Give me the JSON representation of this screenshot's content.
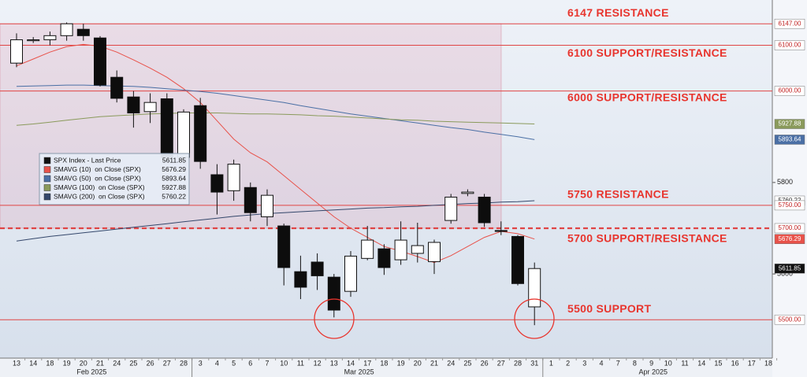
{
  "chart_data": {
    "type": "candlestick",
    "candle_name": "SPX Index - Last Price",
    "categories": [
      "13",
      "14",
      "18",
      "19",
      "20",
      "21",
      "24",
      "25",
      "26",
      "27",
      "28",
      "3",
      "4",
      "5",
      "6",
      "7",
      "10",
      "11",
      "12",
      "13",
      "14",
      "17",
      "18",
      "19",
      "20",
      "21",
      "24",
      "25",
      "26",
      "27",
      "28",
      "31",
      "1",
      "2",
      "3",
      "4",
      "7",
      "8",
      "9",
      "10",
      "11",
      "14",
      "15",
      "16",
      "17",
      "18"
    ],
    "month_labels": [
      "Feb 2025",
      "Mar 2025",
      "Apr 2025"
    ],
    "open": [
      6061,
      6110,
      6112,
      6121,
      6135,
      6116,
      6030,
      5987,
      5955,
      5983,
      5855,
      5968,
      5817,
      5782,
      5789,
      5725,
      5705,
      5605,
      5626,
      5593,
      5562,
      5634,
      5655,
      5631,
      5645,
      5627,
      5717,
      5776,
      5768,
      5695,
      5682,
      5528,
      null,
      null,
      null,
      null,
      null,
      null,
      null,
      null,
      null,
      null,
      null,
      null,
      null,
      null
    ],
    "high": [
      6126,
      6118,
      6130,
      6150,
      6147,
      6120,
      6045,
      6000,
      5995,
      5995,
      5960,
      5985,
      5840,
      5850,
      5800,
      5785,
      5710,
      5640,
      5645,
      5600,
      5650,
      5705,
      5665,
      5715,
      5712,
      5675,
      5775,
      5785,
      5775,
      5715,
      5685,
      5625,
      null,
      null,
      null,
      null,
      null,
      null,
      null,
      null,
      null,
      null,
      null,
      null,
      null,
      null
    ],
    "low": [
      6052,
      6105,
      6100,
      6110,
      6110,
      6010,
      5975,
      5920,
      5930,
      5845,
      5840,
      5830,
      5730,
      5760,
      5715,
      5705,
      5575,
      5545,
      5565,
      5505,
      5550,
      5630,
      5598,
      5620,
      5625,
      5600,
      5710,
      5770,
      5703,
      5685,
      5575,
      5488,
      null,
      null,
      null,
      null,
      null,
      null,
      null,
      null,
      null,
      null,
      null,
      null,
      null,
      null
    ],
    "close": [
      6112,
      6112,
      6121,
      6147,
      6121,
      6013,
      5984,
      5952,
      5975,
      5855,
      5954,
      5846,
      5779,
      5840,
      5734,
      5772,
      5614,
      5571,
      5596,
      5521,
      5639,
      5674,
      5614,
      5674,
      5662,
      5669,
      5768,
      5779,
      5712,
      5693,
      5579,
      5611.85,
      null,
      null,
      null,
      null,
      null,
      null,
      null,
      null,
      null,
      null,
      null,
      null,
      null,
      null
    ],
    "series": [
      {
        "name": "SMAVG (10)  on Close (SPX)",
        "color": "#e8524a",
        "values": [
          6055,
          6070,
          6085,
          6097,
          6102,
          6098,
          6085,
          6068,
          6050,
          6030,
          6005,
          5975,
          5935,
          5895,
          5865,
          5845,
          5815,
          5785,
          5755,
          5725,
          5700,
          5680,
          5660,
          5650,
          5638,
          5625,
          5640,
          5660,
          5680,
          5693,
          5688,
          5676.29,
          null,
          null,
          null,
          null,
          null,
          null,
          null,
          null,
          null,
          null,
          null,
          null,
          null,
          null
        ]
      },
      {
        "name": "SMAVG (50)  on Close (SPX)",
        "color": "#4a6fa5",
        "values": [
          6010,
          6011,
          6012,
          6013,
          6013,
          6012,
          6011,
          6010,
          6008,
          6005,
          6002,
          5999,
          5995,
          5990,
          5985,
          5980,
          5975,
          5968,
          5962,
          5956,
          5950,
          5945,
          5940,
          5935,
          5930,
          5925,
          5920,
          5916,
          5910,
          5905,
          5900,
          5893.64,
          null,
          null,
          null,
          null,
          null,
          null,
          null,
          null,
          null,
          null,
          null,
          null,
          null,
          null
        ]
      },
      {
        "name": "SMAVG (100)  on Close (SPX)",
        "color": "#8a9a5b",
        "values": [
          5925,
          5928,
          5932,
          5936,
          5940,
          5944,
          5946,
          5948,
          5950,
          5951,
          5952,
          5952,
          5952,
          5951,
          5950,
          5950,
          5949,
          5948,
          5946,
          5945,
          5943,
          5941,
          5939,
          5937,
          5936,
          5934,
          5933,
          5932,
          5931,
          5930,
          5929,
          5927.88,
          null,
          null,
          null,
          null,
          null,
          null,
          null,
          null,
          null,
          null,
          null,
          null,
          null,
          null
        ]
      },
      {
        "name": "SMAVG (200)  on Close (SPX)",
        "color": "#34476b",
        "values": [
          5672,
          5677,
          5682,
          5686,
          5690,
          5694,
          5698,
          5702,
          5706,
          5710,
          5714,
          5718,
          5722,
          5726,
          5729,
          5732,
          5734,
          5736,
          5738,
          5740,
          5742,
          5744,
          5745,
          5747,
          5748,
          5750,
          5752,
          5754,
          5755,
          5757,
          5758,
          5760.22,
          null,
          null,
          null,
          null,
          null,
          null,
          null,
          null,
          null,
          null,
          null,
          null,
          null,
          null
        ]
      }
    ],
    "ylim": [
      5416,
      6199
    ],
    "yticks": [
      5600,
      5800
    ],
    "levels": [
      {
        "value": 6147,
        "label": "6147.00",
        "text": "6147 RESISTANCE"
      },
      {
        "value": 6100,
        "label": "6100.00",
        "text": "6100 SUPPORT/RESISTANCE"
      },
      {
        "value": 6000,
        "label": "6000.00",
        "text": "6000 SUPPORT/RESISTANCE"
      },
      {
        "value": 5750,
        "label": "5750.00",
        "text": "5750 RESISTANCE"
      },
      {
        "value": 5700,
        "label": "5700.00",
        "text": "5700 SUPPORT/RESISTANCE"
      },
      {
        "value": 5500,
        "label": "5500.00",
        "text": "5500 SUPPORT"
      }
    ]
  }
}
